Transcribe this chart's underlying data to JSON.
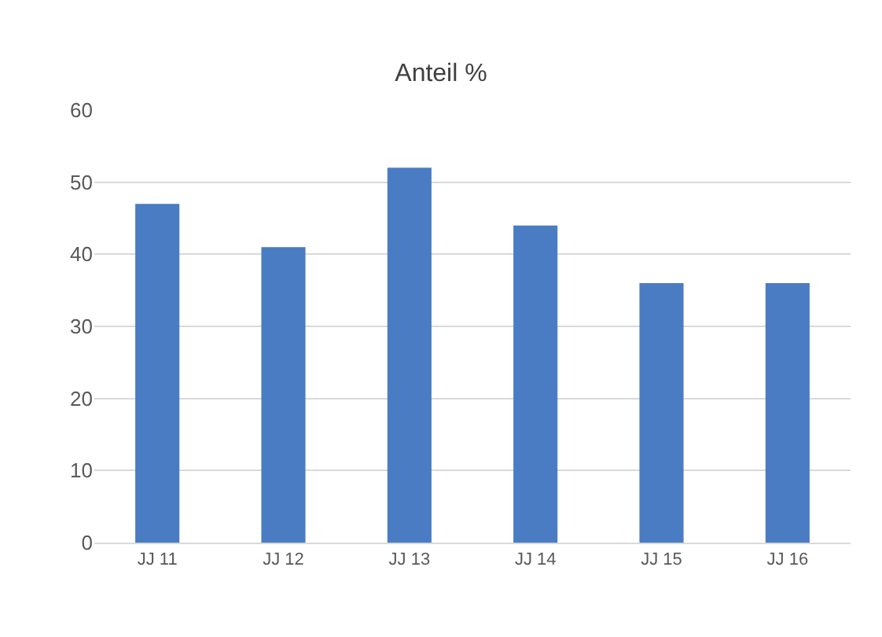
{
  "chart_data": {
    "type": "bar",
    "title": "Anteil %",
    "categories": [
      "JJ 11",
      "JJ 12",
      "JJ 13",
      "JJ 14",
      "JJ 15",
      "JJ 16"
    ],
    "values": [
      47,
      41,
      52,
      44,
      36,
      36
    ],
    "color": "#4a7cc4",
    "ylim": [
      0,
      60
    ],
    "yticks": [
      0,
      10,
      20,
      30,
      40,
      50,
      60
    ],
    "grid": "y"
  }
}
